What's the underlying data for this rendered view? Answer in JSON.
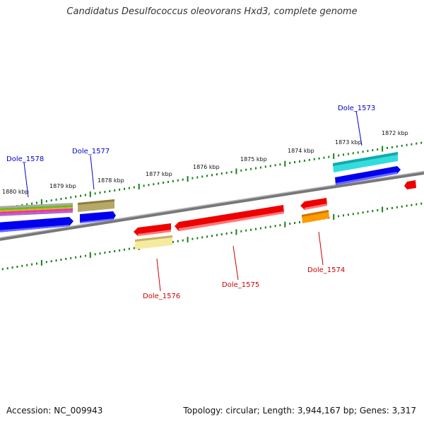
{
  "title": "Candidatus Desulfococcus oleovorans Hxd3, complete genome",
  "footer": {
    "accession": "Accession: NC_009943",
    "summary": "Topology: circular; Length: 3,944,167 bp; Genes: 3,317"
  },
  "colors": {
    "backbone": "#888888",
    "tick": "#1a7f1a",
    "forward_label": "#0000cc",
    "reverse_label": "#cc0000"
  },
  "kbp_ticks": [
    "1880 kbp",
    "1879 kbp",
    "1878 kbp",
    "1877 kbp",
    "1876 kbp",
    "1875 kbp",
    "1874 kbp",
    "1873 kbp",
    "1872 kbp"
  ],
  "forward_genes": [
    {
      "name": "Dole_1578",
      "color": "#0000cc"
    },
    {
      "name": "Dole_1577",
      "color": "#0000cc"
    },
    {
      "name": "Dole_1573",
      "color": "#0000cc"
    }
  ],
  "reverse_genes": [
    {
      "name": "Dole_1576",
      "color": "#cc0000"
    },
    {
      "name": "Dole_1575",
      "color": "#cc0000"
    },
    {
      "name": "Dole_1574",
      "color": "#cc0000"
    }
  ]
}
